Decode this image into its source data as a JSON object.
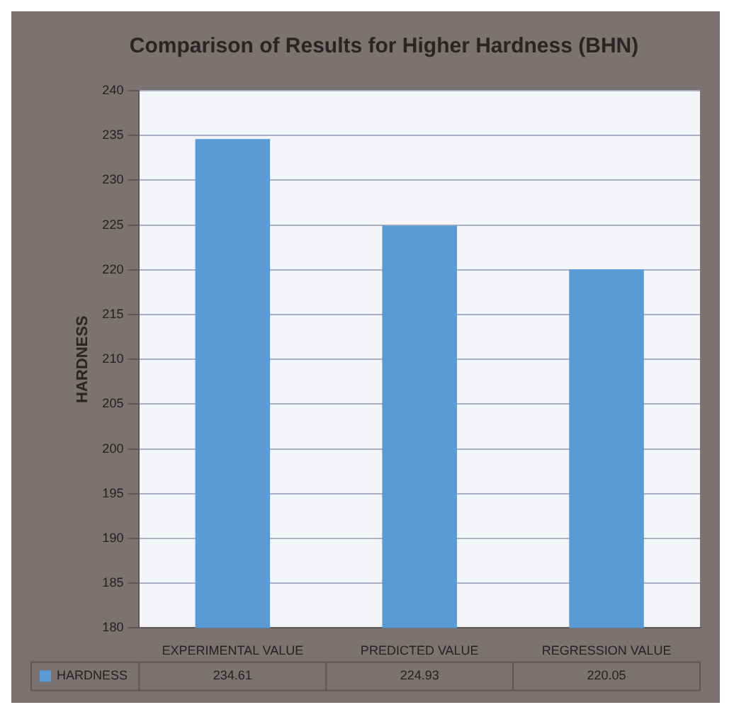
{
  "chart_data": {
    "type": "bar",
    "title": "Comparison of Results for Higher Hardness (BHN)",
    "ylabel": "HARDNESS",
    "categories": [
      "EXPERIMENTAL VALUE",
      "PREDICTED VALUE",
      "REGRESSION VALUE"
    ],
    "series": [
      {
        "name": "HARDNESS",
        "color": "#5b9bd5",
        "values": [
          234.61,
          224.93,
          220.05
        ]
      }
    ],
    "ylim": [
      180,
      240
    ],
    "yticks": [
      180,
      185,
      190,
      195,
      200,
      205,
      210,
      215,
      220,
      225,
      230,
      235,
      240
    ],
    "grid": "y",
    "legend": "bottom",
    "data_labels": true
  }
}
